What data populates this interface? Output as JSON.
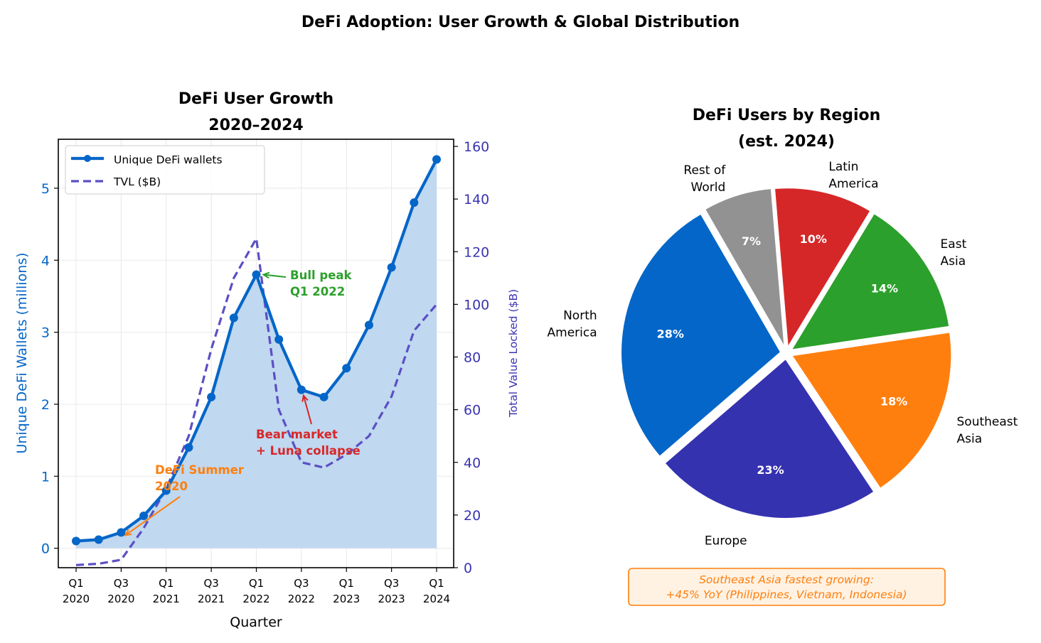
{
  "figure": {
    "suptitle": "DeFi Adoption: User Growth & Global Distribution"
  },
  "chart_data": [
    {
      "type": "line",
      "title_line1": "DeFi User Growth",
      "title_line2": "2020–2024",
      "xlabel": "Quarter",
      "ylabel": "Unique DeFi Wallets (millions)",
      "y2label": "Total Value Locked ($B)",
      "x": [
        "Q1 2020",
        "Q2 2020",
        "Q3 2020",
        "Q4 2020",
        "Q1 2021",
        "Q2 2021",
        "Q3 2021",
        "Q4 2021",
        "Q1 2022",
        "Q2 2022",
        "Q3 2022",
        "Q4 2022",
        "Q1 2023",
        "Q2 2023",
        "Q3 2023",
        "Q4 2023",
        "Q1 2024"
      ],
      "xticks": [
        {
          "index": 0,
          "line1": "Q1",
          "line2": "2020"
        },
        {
          "index": 2,
          "line1": "Q3",
          "line2": "2020"
        },
        {
          "index": 4,
          "line1": "Q1",
          "line2": "2021"
        },
        {
          "index": 6,
          "line1": "Q3",
          "line2": "2021"
        },
        {
          "index": 8,
          "line1": "Q1",
          "line2": "2022"
        },
        {
          "index": 10,
          "line1": "Q3",
          "line2": "2022"
        },
        {
          "index": 12,
          "line1": "Q1",
          "line2": "2023"
        },
        {
          "index": 14,
          "line1": "Q3",
          "line2": "2023"
        },
        {
          "index": 16,
          "line1": "Q1",
          "line2": "2024"
        }
      ],
      "ylim": [
        -0.27,
        5.68
      ],
      "yticks": [
        0,
        1,
        2,
        3,
        4,
        5
      ],
      "y2lim": [
        0,
        162.7
      ],
      "y2ticks": [
        0,
        20,
        40,
        60,
        80,
        100,
        120,
        140,
        160
      ],
      "grid": true,
      "legend_position": "top-left",
      "series": [
        {
          "name": "Unique DeFi wallets",
          "axis": "left",
          "style": "solid-markers-filled",
          "color": "#0466c8",
          "fill_color": "#c0d8f0",
          "values": [
            0.1,
            0.12,
            0.22,
            0.45,
            0.8,
            1.4,
            2.1,
            3.2,
            3.8,
            2.9,
            2.2,
            2.1,
            2.5,
            3.1,
            3.9,
            4.8,
            5.4
          ]
        },
        {
          "name": "TVL ($B)",
          "axis": "right",
          "style": "dashed",
          "color": "#5b4fc4",
          "values": [
            1,
            1.5,
            3,
            15,
            30,
            50,
            83,
            110,
            125,
            60,
            40,
            38,
            43,
            50,
            65,
            90,
            100
          ]
        }
      ],
      "annotations": [
        {
          "id": "bull",
          "line1": "Bull peak",
          "line2": "Q1 2022",
          "color": "#2ca02c",
          "target_index": 8,
          "target_value": 3.8
        },
        {
          "id": "bear",
          "line1": "Bear market",
          "line2": "+ Luna collapse",
          "color": "#d62728",
          "target_index": 10,
          "target_value": 2.2
        },
        {
          "id": "summer",
          "line1": "DeFi Summer",
          "line2": "2020",
          "color": "#ff7f0e",
          "target_index": 2,
          "target_value": 0.22
        }
      ]
    },
    {
      "type": "pie",
      "title_line1": "DeFi Users by Region",
      "title_line2": "(est. 2024)",
      "start_angle_deg": 120,
      "direction": "counterclockwise",
      "slices": [
        {
          "label_line1": "North",
          "label_line2": "America",
          "value": 28,
          "pct_label": "28%",
          "color": "#0466c8"
        },
        {
          "label_line1": "Europe",
          "label_line2": "",
          "value": 23,
          "pct_label": "23%",
          "color": "#3532b0"
        },
        {
          "label_line1": "Southeast",
          "label_line2": "Asia",
          "value": 18,
          "pct_label": "18%",
          "color": "#ff7f0e"
        },
        {
          "label_line1": "East",
          "label_line2": "Asia",
          "value": 14,
          "pct_label": "14%",
          "color": "#2ca02c"
        },
        {
          "label_line1": "Latin",
          "label_line2": "America",
          "value": 10,
          "pct_label": "10%",
          "color": "#d62728"
        },
        {
          "label_line1": "Rest of",
          "label_line2": "World",
          "value": 7,
          "pct_label": "7%",
          "color": "#929292"
        }
      ],
      "note_line1": "Southeast Asia fastest growing:",
      "note_line2": "+45% YoY (Philippines, Vietnam, Indonesia)",
      "note_color": "#ff7f0e",
      "note_bg": "#fff2e3"
    }
  ]
}
